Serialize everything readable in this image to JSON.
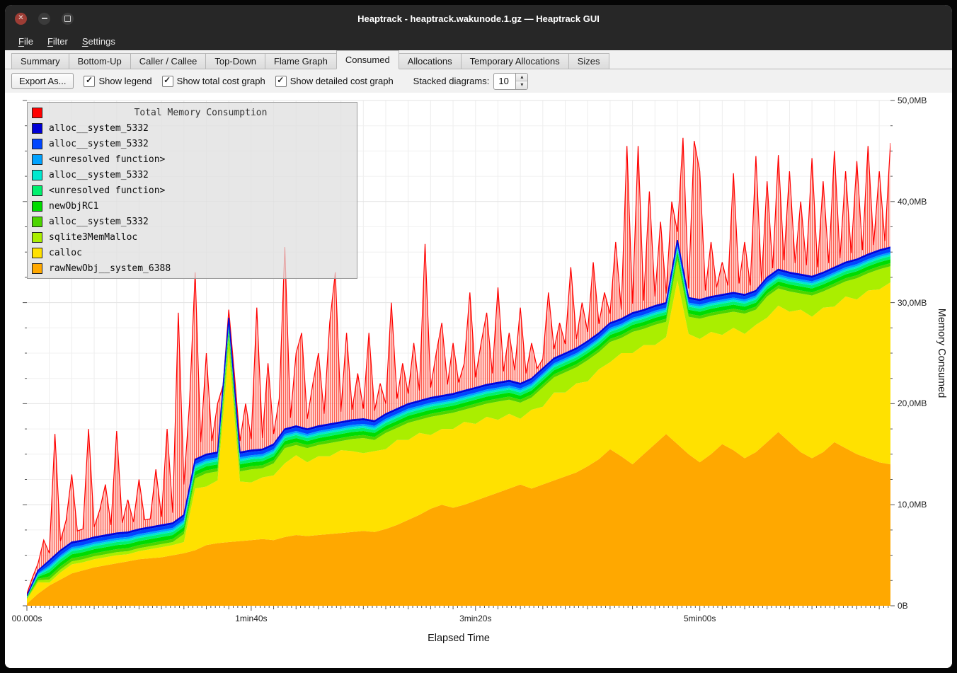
{
  "window": {
    "title": "Heaptrack - heaptrack.wakunode.1.gz — Heaptrack GUI",
    "controls": [
      "close",
      "minimize",
      "maximize"
    ]
  },
  "menubar": {
    "items": [
      {
        "label": "File",
        "mnemonic": "F"
      },
      {
        "label": "Filter",
        "mnemonic": "F"
      },
      {
        "label": "Settings",
        "mnemonic": "S"
      }
    ]
  },
  "tabs": {
    "active": "Consumed",
    "items": [
      "Summary",
      "Bottom-Up",
      "Caller / Callee",
      "Top-Down",
      "Flame Graph",
      "Consumed",
      "Allocations",
      "Temporary Allocations",
      "Sizes"
    ]
  },
  "toolbar": {
    "export_button": "Export As...",
    "checkboxes": [
      {
        "label": "Show legend",
        "checked": true
      },
      {
        "label": "Show total cost graph",
        "checked": true
      },
      {
        "label": "Show detailed cost graph",
        "checked": true
      }
    ],
    "stacked_label": "Stacked diagrams:",
    "stacked_value": "10"
  },
  "colors": {
    "titlebar_bg": "#272727",
    "close_button": "#9d3d35",
    "content_bg": "#f1f1f1",
    "chart_bg": "#ffffff",
    "grid_line": "#ededed",
    "total_red": "#ff0000"
  },
  "chart_data": {
    "type": "area",
    "title": "Total Memory Consumption",
    "xlabel": "Elapsed Time",
    "ylabel": "Memory Consumed",
    "legend_position": "top-left",
    "grid": true,
    "x_max_seconds": 385,
    "y_max_mb": 50,
    "x_ticks": [
      {
        "t": 0,
        "label": "00.000s"
      },
      {
        "t": 100,
        "label": "1min40s"
      },
      {
        "t": 200,
        "label": "3min20s"
      },
      {
        "t": 300,
        "label": "5min00s"
      }
    ],
    "y_ticks": [
      {
        "mb": 0,
        "label": "0B"
      },
      {
        "mb": 10,
        "label": "10,0MB"
      },
      {
        "mb": 20,
        "label": "20,0MB"
      },
      {
        "mb": 30,
        "label": "30,0MB"
      },
      {
        "mb": 40,
        "label": "40,0MB"
      },
      {
        "mb": 50,
        "label": "50,0MB"
      }
    ],
    "stack_step_seconds": 5,
    "stacked_series": [
      {
        "name": "rawNewObj__system_6388",
        "color": "#ffa800",
        "values": [
          0.2,
          1.2,
          2.0,
          2.6,
          3.2,
          3.5,
          3.8,
          4.0,
          4.2,
          4.4,
          4.6,
          4.7,
          4.8,
          5.0,
          5.2,
          5.5,
          6.0,
          6.2,
          6.3,
          6.4,
          6.5,
          6.6,
          6.5,
          6.8,
          7.0,
          6.9,
          7.0,
          7.1,
          7.2,
          7.3,
          7.4,
          7.3,
          7.6,
          8.0,
          8.5,
          9.0,
          9.6,
          10.0,
          9.7,
          10.0,
          10.4,
          10.8,
          11.2,
          11.6,
          12.0,
          11.6,
          12.0,
          12.4,
          12.8,
          13.2,
          13.8,
          14.5,
          15.5,
          14.8,
          14.0,
          15.0,
          16.0,
          17.0,
          16.0,
          15.0,
          14.2,
          15.0,
          16.0,
          15.4,
          14.6,
          15.2,
          16.2,
          17.2,
          16.2,
          15.2,
          14.6,
          15.2,
          16.2,
          15.6,
          15.0,
          14.6,
          14.2,
          14.0
        ]
      },
      {
        "name": "calloc",
        "color": "#ffe100",
        "values": [
          0.42,
          1.12,
          0.3,
          0.7,
          0.9,
          0.8,
          0.8,
          0.8,
          0.8,
          0.7,
          0.8,
          0.9,
          1.0,
          1.0,
          1.1,
          6.1,
          5.8,
          6.2,
          18.9,
          5.9,
          5.7,
          6.1,
          6.4,
          7.3,
          7.9,
          7.3,
          7.8,
          7.7,
          8.2,
          8.0,
          7.7,
          8.0,
          7.9,
          8.4,
          7.9,
          8.1,
          7.3,
          7.5,
          7.8,
          8.2,
          7.6,
          7.9,
          7.2,
          7.4,
          6.5,
          7.8,
          7.7,
          8.7,
          8.3,
          8.8,
          8.4,
          8.9,
          8.6,
          10.2,
          11.0,
          10.8,
          9.8,
          9.6,
          16.2,
          11.9,
          12.2,
          12.1,
          10.8,
          12.1,
          12.3,
          12.6,
          12.3,
          12.5,
          12.9,
          14.1,
          14.0,
          14.3,
          13.4,
          15.0,
          15.3,
          16.6,
          17.1,
          18.0
        ]
      },
      {
        "name": "sqlite3MemMalloc",
        "color": "#aaee00",
        "values": [
          0.1,
          0.2,
          0.3,
          0.3,
          0.3,
          0.3,
          0.3,
          0.3,
          0.3,
          0.3,
          0.3,
          0.3,
          0.3,
          0.3,
          0.8,
          1.0,
          1.3,
          0.9,
          1.4,
          1.0,
          1.3,
          0.9,
          1.2,
          1.5,
          1.0,
          1.4,
          1.1,
          1.3,
          0.9,
          1.2,
          1.5,
          1.1,
          1.6,
          1.2,
          1.7,
          1.3,
          1.8,
          1.4,
          1.6,
          1.2,
          1.7,
          1.3,
          1.8,
          1.4,
          1.6,
          1.2,
          1.9,
          1.5,
          2.0,
          1.6,
          2.1,
          1.7,
          2.0,
          1.5,
          2.1,
          1.6,
          2.0,
          1.5,
          2.1,
          1.7,
          2.0,
          1.6,
          2.1,
          1.6,
          2.0,
          1.5,
          2.1,
          1.7,
          2.0,
          1.6,
          2.1,
          1.6,
          2.0,
          1.5,
          2.1,
          1.7,
          2.0,
          1.6
        ]
      },
      {
        "name": "alloc__system_5332",
        "color": "#4cd500",
        "rle": [
          [
            1,
            0.05
          ],
          [
            1,
            0.15
          ],
          [
            76,
            0.3
          ]
        ]
      },
      {
        "name": "newObjRC1",
        "color": "#00dc00",
        "rle": [
          [
            1,
            0.05
          ],
          [
            1,
            0.2
          ],
          [
            76,
            0.4
          ]
        ]
      },
      {
        "name": "<unresolved function>",
        "color": "#00f06e",
        "rle": [
          [
            1,
            0.05
          ],
          [
            1,
            0.15
          ],
          [
            76,
            0.3
          ]
        ]
      },
      {
        "name": "alloc__system_5332",
        "color": "#00e8cf",
        "rle": [
          [
            1,
            0.03
          ],
          [
            1,
            0.1
          ],
          [
            76,
            0.2
          ]
        ]
      },
      {
        "name": "<unresolved function>",
        "color": "#00a2ff",
        "rle": [
          [
            1,
            0.03
          ],
          [
            1,
            0.1
          ],
          [
            76,
            0.2
          ]
        ]
      },
      {
        "name": "alloc__system_5332",
        "color": "#0046ff",
        "rle": [
          [
            1,
            0.05
          ],
          [
            1,
            0.2
          ],
          [
            76,
            0.35
          ]
        ]
      },
      {
        "name": "alloc__system_5332",
        "color": "#0000d5",
        "rle": [
          [
            1,
            0.02
          ],
          [
            1,
            0.08
          ],
          [
            76,
            0.15
          ]
        ]
      }
    ],
    "total_series": {
      "name": "Total Memory Consumption",
      "color": "#ff0000",
      "step_seconds": 2.5,
      "values": [
        1.2,
        2.8,
        4.2,
        6.5,
        5.2,
        17.0,
        6.4,
        8.5,
        13.0,
        7.4,
        7.6,
        17.5,
        7.8,
        9.5,
        12.0,
        8.0,
        17.3,
        8.2,
        10.5,
        8.3,
        12.5,
        8.5,
        8.6,
        13.5,
        8.8,
        17.5,
        9.2,
        29.0,
        12.0,
        20.0,
        33.0,
        16.2,
        25.0,
        16.3,
        20.0,
        16.5,
        29.3,
        23.0,
        16.3,
        20.0,
        16.5,
        29.5,
        16.6,
        24.0,
        17.0,
        20.5,
        35.5,
        18.6,
        25.0,
        27.0,
        18.5,
        22.0,
        25.0,
        19.0,
        28.0,
        33.0,
        19.2,
        27.0,
        19.4,
        23.0,
        19.5,
        27.0,
        19.3,
        22.0,
        20.0,
        30.0,
        20.5,
        24.0,
        21.0,
        26.0,
        21.3,
        35.8,
        21.6,
        25.0,
        28.0,
        21.9,
        26.0,
        22.1,
        24.0,
        31.0,
        22.6,
        26.0,
        29.0,
        23.0,
        31.5,
        23.2,
        27.0,
        23.3,
        29.5,
        23.0,
        26.0,
        23.5,
        24.4,
        31.0,
        25.4,
        28.0,
        25.9,
        33.5,
        26.4,
        30.0,
        27.1,
        34.0,
        27.9,
        31.0,
        28.9,
        36.0,
        29.3,
        45.5,
        29.9,
        45.5,
        30.2,
        41.0,
        30.6,
        38.0,
        30.9,
        40.0,
        37.0,
        46.3,
        31.4,
        46.0,
        43.0,
        31.2,
        36.0,
        31.5,
        34.0,
        31.7,
        42.8,
        31.9,
        36.0,
        31.7,
        44.5,
        32.1,
        42.0,
        33.4,
        44.6,
        34.2,
        43.0,
        33.9,
        40.0,
        33.7,
        44.3,
        33.5,
        42.0,
        33.9,
        45.0,
        34.4,
        43.0,
        34.9,
        44.0,
        35.2,
        45.5,
        35.7,
        43.0,
        36.1,
        45.8,
        36.4
      ]
    }
  }
}
